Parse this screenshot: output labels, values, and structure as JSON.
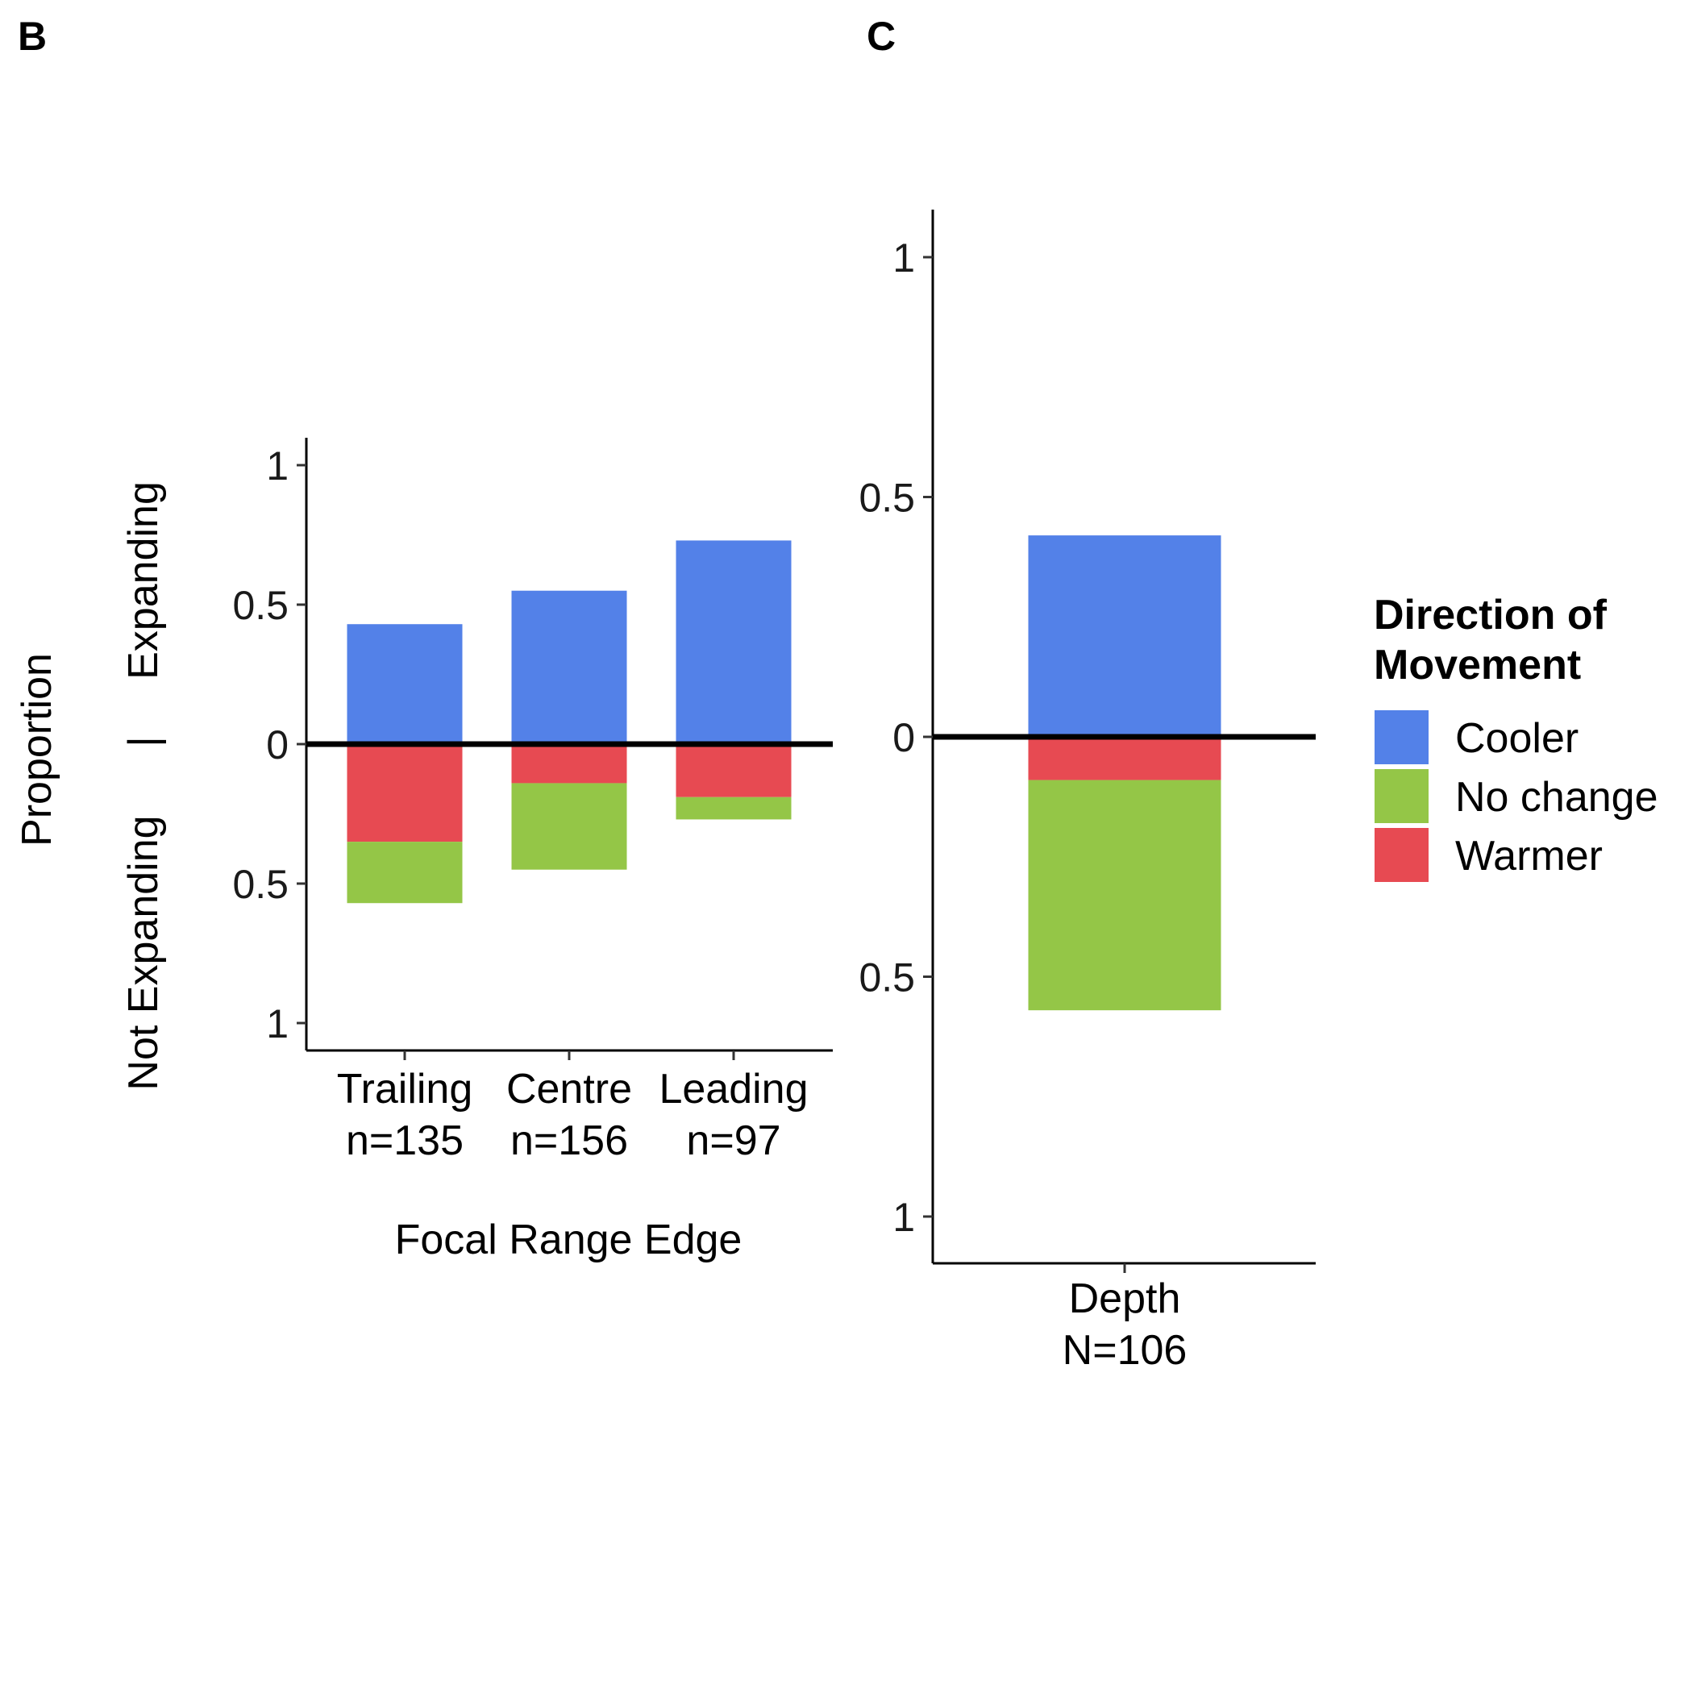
{
  "colors": {
    "Cooler": "#5381e8",
    "No change": "#94c647",
    "Warmer": "#e74a52"
  },
  "legend": {
    "title_line1": "Direction of",
    "title_line2": "Movement",
    "items": [
      "Cooler",
      "No change",
      "Warmer"
    ]
  },
  "y_axis": {
    "label_proportion": "Proportion",
    "label_separator": "|",
    "label_top": "Expanding",
    "label_bottom": "Not Expanding"
  },
  "chart_data": [
    {
      "panel": "B",
      "type": "bar",
      "stacked": true,
      "diverging": true,
      "xlabel": "Focal Range Edge",
      "ylim": [
        -1,
        1
      ],
      "y_ticks": [
        {
          "value": 1,
          "label": "1"
        },
        {
          "value": 0.5,
          "label": "0.5"
        },
        {
          "value": 0,
          "label": "0"
        },
        {
          "value": -0.5,
          "label": "0.5"
        },
        {
          "value": -1,
          "label": "1"
        }
      ],
      "categories": [
        {
          "name": "Trailing",
          "n": "n=135"
        },
        {
          "name": "Centre",
          "n": "n=156"
        },
        {
          "name": "Leading",
          "n": "n=97"
        }
      ],
      "expanding": [
        {
          "name": "Cooler",
          "values": [
            0.43,
            0.55,
            0.73
          ]
        }
      ],
      "not_expanding": [
        {
          "name": "Warmer",
          "values": [
            0.35,
            0.14,
            0.19
          ]
        },
        {
          "name": "No change",
          "values": [
            0.22,
            0.31,
            0.08
          ]
        }
      ]
    },
    {
      "panel": "C",
      "type": "bar",
      "stacked": true,
      "diverging": true,
      "xlabel": "",
      "ylim": [
        -1,
        1
      ],
      "y_ticks": [
        {
          "value": 1,
          "label": "1"
        },
        {
          "value": 0.5,
          "label": "0.5"
        },
        {
          "value": 0,
          "label": "0"
        },
        {
          "value": -0.5,
          "label": "0.5"
        },
        {
          "value": -1,
          "label": "1"
        }
      ],
      "categories": [
        {
          "name": "Depth",
          "n": "N=106"
        }
      ],
      "expanding": [
        {
          "name": "Cooler",
          "values": [
            0.42
          ]
        }
      ],
      "not_expanding": [
        {
          "name": "Warmer",
          "values": [
            0.09
          ]
        },
        {
          "name": "No change",
          "values": [
            0.48
          ]
        }
      ]
    }
  ]
}
